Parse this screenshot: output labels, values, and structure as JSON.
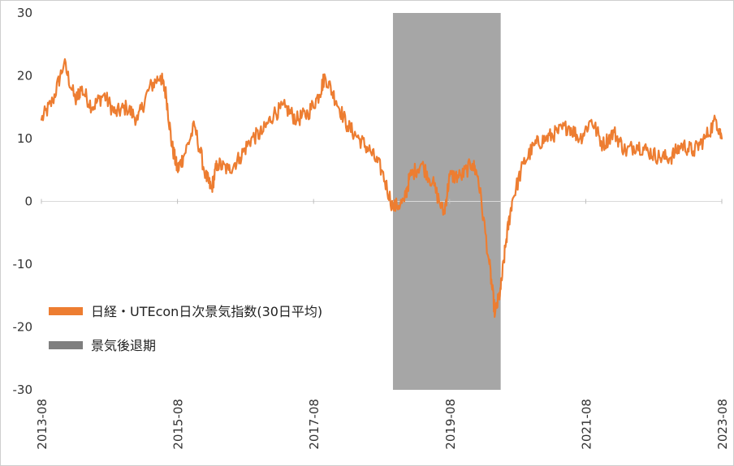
{
  "chart_data": {
    "type": "line",
    "title": "",
    "xlabel": "",
    "ylabel": "",
    "ylim": [
      -30,
      30
    ],
    "y_ticks": [
      "30",
      "20",
      "10",
      "0",
      "-10",
      "-20",
      "-30"
    ],
    "x_ticks": [
      "2013-08",
      "2015-08",
      "2017-08",
      "2019-08",
      "2021-08",
      "2023-08"
    ],
    "grid": false,
    "legend_position": "lower-left",
    "recession_shade": {
      "name": "景気後退期",
      "start": "2018-10",
      "end": "2020-05",
      "color": "#a6a6a6"
    },
    "series": [
      {
        "name": "日経・UTEcon日次景気指数(30日平均)",
        "color": "#ed7d31",
        "x": [
          "2013-08",
          "2013-10",
          "2013-12",
          "2014-02",
          "2014-03",
          "2014-05",
          "2014-07",
          "2014-09",
          "2014-11",
          "2015-01",
          "2015-03",
          "2015-05",
          "2015-06",
          "2015-07",
          "2015-08",
          "2015-09",
          "2015-11",
          "2016-01",
          "2016-02",
          "2016-03",
          "2016-05",
          "2016-07",
          "2016-09",
          "2016-11",
          "2017-01",
          "2017-03",
          "2017-05",
          "2017-07",
          "2017-09",
          "2017-10",
          "2017-12",
          "2018-02",
          "2018-04",
          "2018-06",
          "2018-08",
          "2018-10",
          "2018-12",
          "2019-01",
          "2019-03",
          "2019-05",
          "2019-07",
          "2019-08",
          "2019-10",
          "2019-12",
          "2020-01",
          "2020-03",
          "2020-04",
          "2020-05",
          "2020-06",
          "2020-07",
          "2020-09",
          "2020-11",
          "2021-01",
          "2021-03",
          "2021-05",
          "2021-07",
          "2021-09",
          "2021-11",
          "2022-01",
          "2022-03",
          "2022-05",
          "2022-07",
          "2022-09",
          "2022-11",
          "2023-01",
          "2023-03",
          "2023-05",
          "2023-07",
          "2023-08"
        ],
        "values": [
          13,
          16,
          22,
          16,
          18,
          15,
          17,
          14,
          15,
          13,
          18,
          20,
          17,
          9,
          5,
          7,
          12,
          4,
          2,
          6,
          5,
          7,
          10,
          11,
          14,
          15,
          13,
          14,
          17,
          20,
          16,
          12,
          10,
          8,
          5,
          -1,
          0,
          4,
          6,
          3,
          -2,
          4,
          4,
          6,
          4,
          -10,
          -18,
          -14,
          -6,
          0,
          6,
          9,
          10,
          11,
          12,
          10,
          13,
          9,
          11,
          8,
          9,
          8,
          7,
          7,
          9,
          8,
          10,
          13,
          10
        ]
      }
    ]
  },
  "legend": {
    "items": [
      {
        "label": "日経・UTEcon日次景気指数(30日平均)",
        "color": "#ed7d31"
      },
      {
        "label": "景気後退期",
        "color": "#7f7f7f"
      }
    ]
  }
}
